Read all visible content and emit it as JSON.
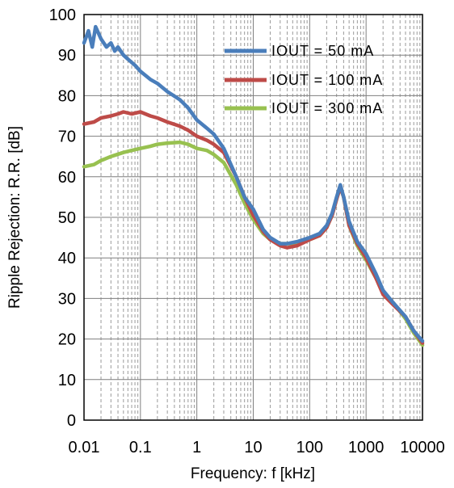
{
  "chart_data": {
    "type": "line",
    "xlabel": "Frequency: f [kHz]",
    "ylabel": "Ripple Rejection: R.R. [dB]",
    "x_scale": "log",
    "xlim": [
      0.01,
      10000
    ],
    "ylim": [
      0,
      100
    ],
    "x_ticks": [
      0.01,
      0.1,
      1,
      10,
      100,
      1000,
      10000
    ],
    "x_tick_labels": [
      "0.01",
      "0.1",
      "1",
      "10",
      "100",
      "1000",
      "10000"
    ],
    "y_ticks": [
      0,
      10,
      20,
      30,
      40,
      50,
      60,
      70,
      80,
      90,
      100
    ],
    "y_tick_labels": [
      "0",
      "10",
      "20",
      "30",
      "40",
      "50",
      "60",
      "70",
      "80",
      "90",
      "100"
    ],
    "grid": "major solid, minor dashed",
    "legend_position": "top-right",
    "series": [
      {
        "name": "IOUT = 50 mA",
        "color": "#4a7ebb",
        "points": [
          [
            0.01,
            93
          ],
          [
            0.012,
            96
          ],
          [
            0.014,
            92
          ],
          [
            0.016,
            97
          ],
          [
            0.02,
            94
          ],
          [
            0.025,
            92
          ],
          [
            0.03,
            93
          ],
          [
            0.035,
            91
          ],
          [
            0.04,
            92
          ],
          [
            0.05,
            90
          ],
          [
            0.06,
            89
          ],
          [
            0.08,
            87.5
          ],
          [
            0.1,
            86
          ],
          [
            0.15,
            84
          ],
          [
            0.2,
            83
          ],
          [
            0.3,
            81
          ],
          [
            0.5,
            79
          ],
          [
            0.7,
            77
          ],
          [
            1,
            74
          ],
          [
            1.5,
            72
          ],
          [
            2,
            70.5
          ],
          [
            3,
            67
          ],
          [
            5,
            60
          ],
          [
            7,
            55
          ],
          [
            10,
            52
          ],
          [
            15,
            47
          ],
          [
            20,
            45
          ],
          [
            30,
            43.5
          ],
          [
            40,
            43.5
          ],
          [
            60,
            44
          ],
          [
            100,
            45
          ],
          [
            150,
            46
          ],
          [
            200,
            48
          ],
          [
            250,
            51
          ],
          [
            300,
            55
          ],
          [
            350,
            58
          ],
          [
            400,
            55
          ],
          [
            500,
            49
          ],
          [
            700,
            44
          ],
          [
            1000,
            41
          ],
          [
            1500,
            36
          ],
          [
            2000,
            32
          ],
          [
            3000,
            29
          ],
          [
            5000,
            25.5
          ],
          [
            7000,
            22
          ],
          [
            10000,
            19.5
          ]
        ]
      },
      {
        "name": "IOUT = 100 mA",
        "color": "#be4b48",
        "points": [
          [
            0.01,
            73
          ],
          [
            0.015,
            73.5
          ],
          [
            0.02,
            74.5
          ],
          [
            0.03,
            75
          ],
          [
            0.04,
            75.5
          ],
          [
            0.05,
            76
          ],
          [
            0.07,
            75.5
          ],
          [
            0.1,
            76
          ],
          [
            0.15,
            75
          ],
          [
            0.2,
            74.5
          ],
          [
            0.3,
            73.5
          ],
          [
            0.5,
            72.5
          ],
          [
            0.7,
            71.5
          ],
          [
            1,
            70
          ],
          [
            1.5,
            69
          ],
          [
            2,
            68
          ],
          [
            3,
            66
          ],
          [
            5,
            60
          ],
          [
            7,
            55
          ],
          [
            10,
            50.5
          ],
          [
            15,
            46.5
          ],
          [
            20,
            44.5
          ],
          [
            30,
            43
          ],
          [
            40,
            42.5
          ],
          [
            60,
            43
          ],
          [
            100,
            44.5
          ],
          [
            150,
            45.5
          ],
          [
            200,
            47.5
          ],
          [
            250,
            50.5
          ],
          [
            300,
            54.5
          ],
          [
            350,
            57.5
          ],
          [
            400,
            55
          ],
          [
            500,
            48
          ],
          [
            700,
            43.5
          ],
          [
            1000,
            40
          ],
          [
            1500,
            35
          ],
          [
            2000,
            31
          ],
          [
            3000,
            28.5
          ],
          [
            5000,
            25.5
          ],
          [
            7000,
            22
          ],
          [
            10000,
            19
          ]
        ]
      },
      {
        "name": "IOUT = 300 mA",
        "color": "#98c150",
        "points": [
          [
            0.01,
            62.5
          ],
          [
            0.015,
            63
          ],
          [
            0.02,
            64
          ],
          [
            0.03,
            65
          ],
          [
            0.05,
            66
          ],
          [
            0.07,
            66.5
          ],
          [
            0.1,
            67
          ],
          [
            0.15,
            67.5
          ],
          [
            0.2,
            68
          ],
          [
            0.3,
            68.3
          ],
          [
            0.5,
            68.5
          ],
          [
            0.7,
            68
          ],
          [
            1,
            67
          ],
          [
            1.5,
            66.5
          ],
          [
            2,
            65.5
          ],
          [
            3,
            63.5
          ],
          [
            5,
            58
          ],
          [
            7,
            53.5
          ],
          [
            10,
            49.5
          ],
          [
            15,
            46
          ],
          [
            20,
            44.5
          ],
          [
            30,
            43.5
          ],
          [
            40,
            43.5
          ],
          [
            60,
            43.5
          ],
          [
            100,
            44.5
          ],
          [
            150,
            45.5
          ],
          [
            200,
            47.5
          ],
          [
            250,
            50.5
          ],
          [
            300,
            54.5
          ],
          [
            350,
            57.5
          ],
          [
            400,
            55
          ],
          [
            500,
            48
          ],
          [
            700,
            43
          ],
          [
            1000,
            39.5
          ],
          [
            1500,
            35
          ],
          [
            2000,
            31.5
          ],
          [
            3000,
            29
          ],
          [
            5000,
            25
          ],
          [
            7000,
            21.5
          ],
          [
            10000,
            18.5
          ]
        ]
      }
    ]
  }
}
